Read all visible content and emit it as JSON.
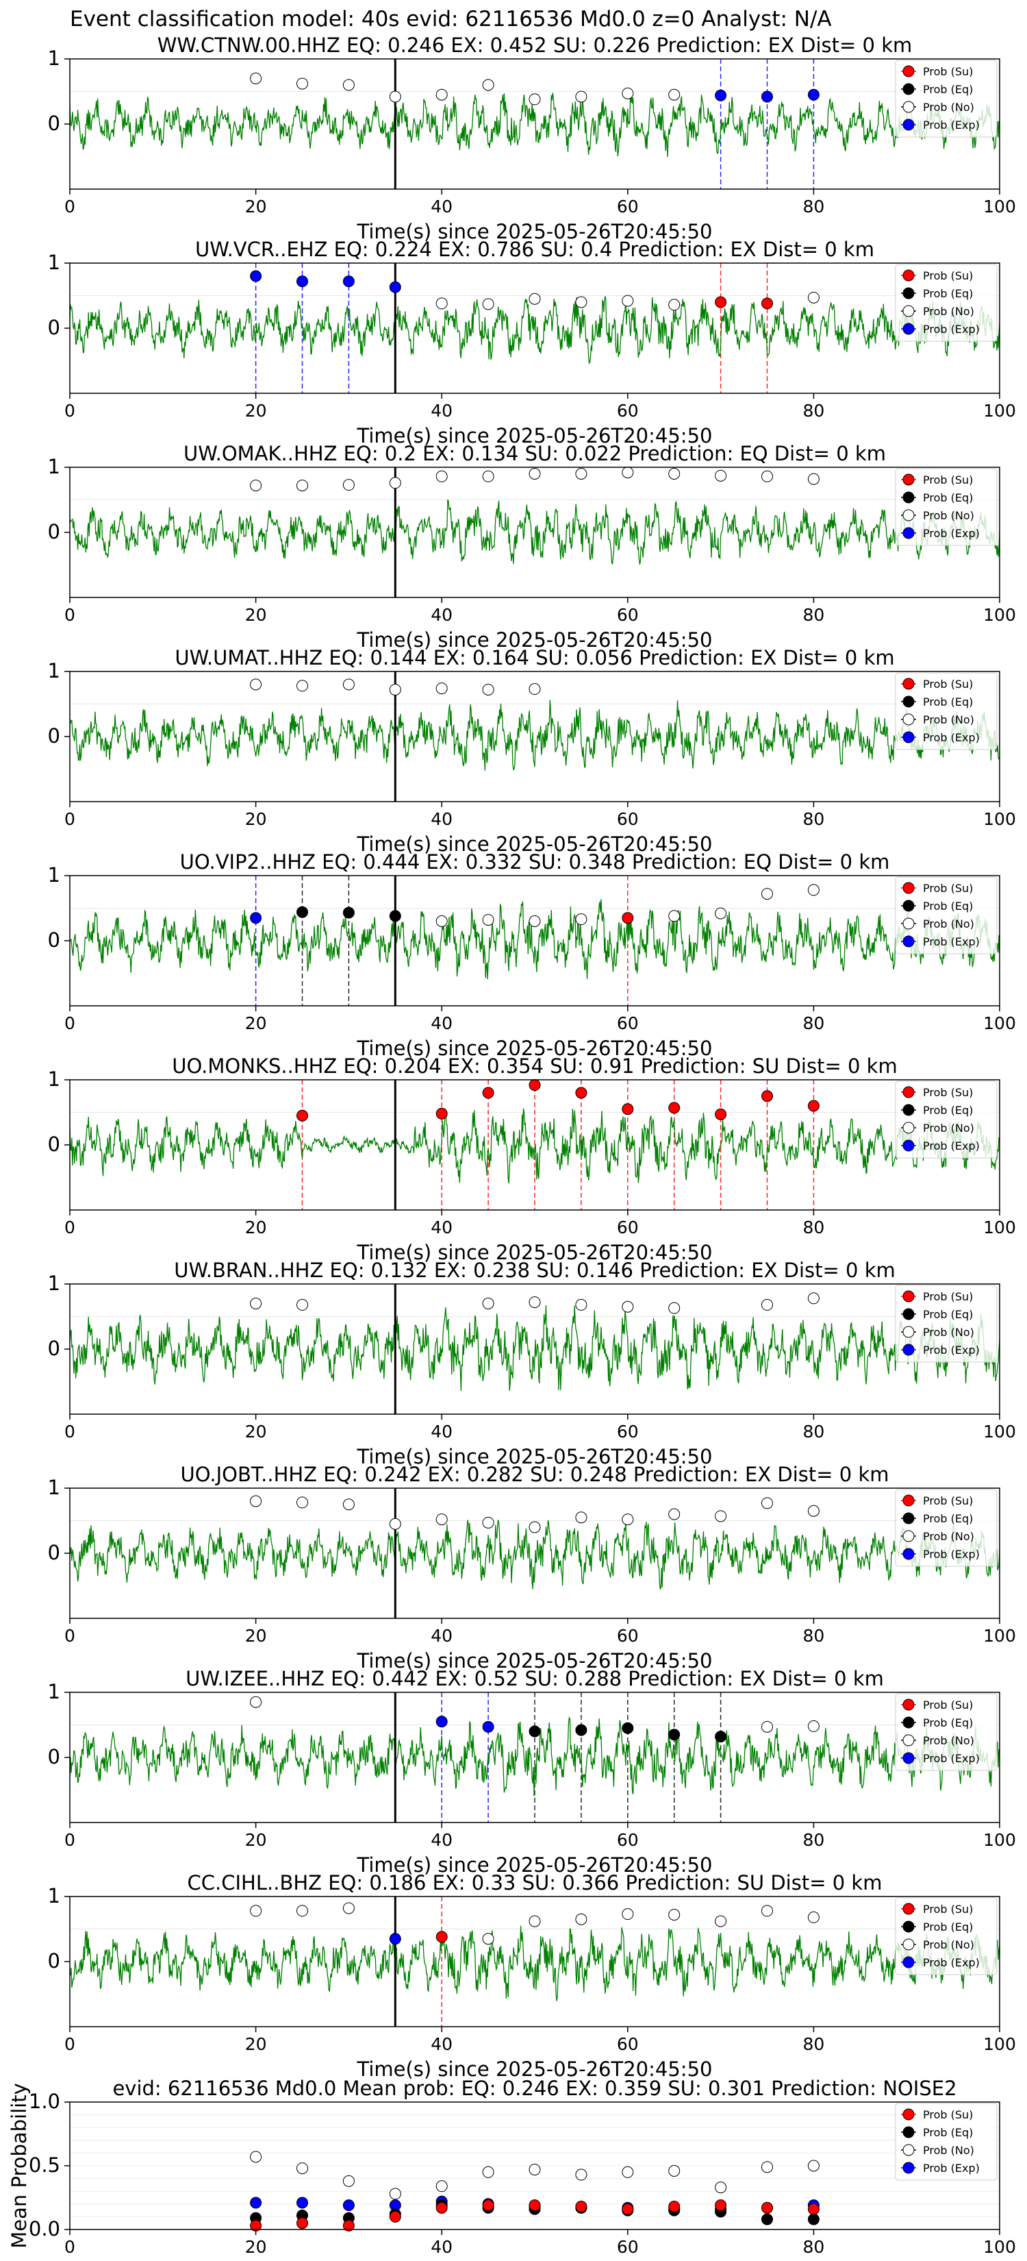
{
  "header": {
    "title": "Event classification model: 40s evid: 62116536 Md0.0 z=0 Analyst: N/A"
  },
  "legend_labels": [
    "Prob (Su)",
    "Prob (Eq)",
    "Prob (No)",
    "Prob (Exp)"
  ],
  "colors": {
    "waveform": "#008000",
    "su": "#ff0000",
    "eq": "#000000",
    "no": "#ffffff",
    "exp": "#0000ff",
    "pick_line": "#000000"
  },
  "chart_data": [
    {
      "type": "line",
      "title": "WW.CTNW.00.HHZ   EQ: 0.246   EX: 0.452   SU: 0.226   Prediction: EX    Dist= 0 km",
      "xlabel": "Time(s) since 2025-05-26T20:45:50",
      "xlim": [
        0,
        100
      ],
      "ylim": [
        -1,
        1
      ],
      "xticks": [
        0,
        20,
        40,
        60,
        80,
        100
      ],
      "yticks": [
        0,
        1
      ],
      "pick_time": 35,
      "amp": 0.3,
      "markers": [
        {
          "t": 20,
          "y": 0.7,
          "cls": "no"
        },
        {
          "t": 25,
          "y": 0.62,
          "cls": "no"
        },
        {
          "t": 30,
          "y": 0.6,
          "cls": "no"
        },
        {
          "t": 35,
          "y": 0.42,
          "cls": "no"
        },
        {
          "t": 40,
          "y": 0.45,
          "cls": "no"
        },
        {
          "t": 45,
          "y": 0.6,
          "cls": "no"
        },
        {
          "t": 50,
          "y": 0.38,
          "cls": "no"
        },
        {
          "t": 55,
          "y": 0.42,
          "cls": "no"
        },
        {
          "t": 60,
          "y": 0.47,
          "cls": "no"
        },
        {
          "t": 65,
          "y": 0.45,
          "cls": "no"
        },
        {
          "t": 70,
          "y": 0.44,
          "cls": "exp"
        },
        {
          "t": 75,
          "y": 0.42,
          "cls": "exp"
        },
        {
          "t": 80,
          "y": 0.45,
          "cls": "exp"
        }
      ]
    },
    {
      "type": "line",
      "title": "UW.VCR..EHZ   EQ: 0.224   EX: 0.786   SU: 0.4   Prediction: EX    Dist= 0 km",
      "xlabel": "Time(s) since 2025-05-26T20:45:50",
      "xlim": [
        0,
        100
      ],
      "ylim": [
        -1,
        1
      ],
      "xticks": [
        0,
        20,
        40,
        60,
        80,
        100
      ],
      "yticks": [
        0,
        1
      ],
      "pick_time": 35,
      "amp": 0.32,
      "markers": [
        {
          "t": 20,
          "y": 0.8,
          "cls": "exp"
        },
        {
          "t": 25,
          "y": 0.72,
          "cls": "exp"
        },
        {
          "t": 30,
          "y": 0.72,
          "cls": "exp"
        },
        {
          "t": 35,
          "y": 0.63,
          "cls": "exp"
        },
        {
          "t": 40,
          "y": 0.38,
          "cls": "no"
        },
        {
          "t": 45,
          "y": 0.37,
          "cls": "no"
        },
        {
          "t": 50,
          "y": 0.45,
          "cls": "no"
        },
        {
          "t": 55,
          "y": 0.4,
          "cls": "no"
        },
        {
          "t": 60,
          "y": 0.42,
          "cls": "no"
        },
        {
          "t": 65,
          "y": 0.36,
          "cls": "no"
        },
        {
          "t": 70,
          "y": 0.4,
          "cls": "su"
        },
        {
          "t": 75,
          "y": 0.38,
          "cls": "su"
        },
        {
          "t": 80,
          "y": 0.47,
          "cls": "no"
        }
      ]
    },
    {
      "type": "line",
      "title": "UW.OMAK..HHZ   EQ: 0.2  EX: 0.134  SU: 0.022   Prediction: EQ    Dist= 0 km",
      "xlabel": "Time(s) since 2025-05-26T20:45:50",
      "xlim": [
        0,
        100
      ],
      "ylim": [
        -1,
        1
      ],
      "xticks": [
        0,
        20,
        40,
        60,
        80,
        100
      ],
      "yticks": [
        0,
        1
      ],
      "pick_time": 35,
      "amp": 0.3,
      "markers": [
        {
          "t": 20,
          "y": 0.72,
          "cls": "no"
        },
        {
          "t": 25,
          "y": 0.72,
          "cls": "no"
        },
        {
          "t": 30,
          "y": 0.73,
          "cls": "no"
        },
        {
          "t": 35,
          "y": 0.76,
          "cls": "no"
        },
        {
          "t": 40,
          "y": 0.86,
          "cls": "no"
        },
        {
          "t": 45,
          "y": 0.86,
          "cls": "no"
        },
        {
          "t": 50,
          "y": 0.9,
          "cls": "no"
        },
        {
          "t": 55,
          "y": 0.9,
          "cls": "no"
        },
        {
          "t": 60,
          "y": 0.92,
          "cls": "no"
        },
        {
          "t": 65,
          "y": 0.9,
          "cls": "no"
        },
        {
          "t": 70,
          "y": 0.87,
          "cls": "no"
        },
        {
          "t": 75,
          "y": 0.86,
          "cls": "no"
        },
        {
          "t": 80,
          "y": 0.82,
          "cls": "no"
        }
      ]
    },
    {
      "type": "line",
      "title": "UW.UMAT..HHZ   EQ: 0.144  EX: 0.164  SU: 0.056   Prediction: EX    Dist= 0 km",
      "xlabel": "Time(s) since 2025-05-26T20:45:50",
      "xlim": [
        0,
        100
      ],
      "ylim": [
        -1,
        1
      ],
      "xticks": [
        0,
        20,
        40,
        60,
        80,
        100
      ],
      "yticks": [
        0,
        1
      ],
      "pick_time": 35,
      "amp": 0.32,
      "markers": [
        {
          "t": 20,
          "y": 0.8,
          "cls": "no"
        },
        {
          "t": 25,
          "y": 0.78,
          "cls": "no"
        },
        {
          "t": 30,
          "y": 0.8,
          "cls": "no"
        },
        {
          "t": 35,
          "y": 0.72,
          "cls": "no"
        },
        {
          "t": 40,
          "y": 0.74,
          "cls": "no"
        },
        {
          "t": 45,
          "y": 0.72,
          "cls": "no"
        },
        {
          "t": 50,
          "y": 0.73,
          "cls": "no"
        }
      ]
    },
    {
      "type": "line",
      "title": "UO.VIP2..HHZ   EQ: 0.444  EX: 0.332  SU: 0.348   Prediction: EQ    Dist= 0 km",
      "xlabel": "Time(s) since 2025-05-26T20:45:50",
      "xlim": [
        0,
        100
      ],
      "ylim": [
        -1,
        1
      ],
      "xticks": [
        0,
        20,
        40,
        60,
        80,
        100
      ],
      "yticks": [
        0,
        1
      ],
      "pick_time": 35,
      "amp": 0.36,
      "markers": [
        {
          "t": 20,
          "y": 0.35,
          "cls": "exp"
        },
        {
          "t": 25,
          "y": 0.44,
          "cls": "eq"
        },
        {
          "t": 30,
          "y": 0.43,
          "cls": "eq"
        },
        {
          "t": 35,
          "y": 0.38,
          "cls": "eq"
        },
        {
          "t": 40,
          "y": 0.3,
          "cls": "no"
        },
        {
          "t": 45,
          "y": 0.32,
          "cls": "no"
        },
        {
          "t": 50,
          "y": 0.3,
          "cls": "no"
        },
        {
          "t": 55,
          "y": 0.33,
          "cls": "no"
        },
        {
          "t": 60,
          "y": 0.35,
          "cls": "su"
        },
        {
          "t": 65,
          "y": 0.38,
          "cls": "no"
        },
        {
          "t": 70,
          "y": 0.42,
          "cls": "no"
        },
        {
          "t": 75,
          "y": 0.72,
          "cls": "no"
        },
        {
          "t": 80,
          "y": 0.78,
          "cls": "no"
        }
      ]
    },
    {
      "type": "line",
      "title": "UO.MONKS..HHZ   EQ: 0.204  EX: 0.354  SU: 0.91   Prediction: SU    Dist= 0 km",
      "xlabel": "Time(s) since 2025-05-26T20:45:50",
      "xlim": [
        0,
        100
      ],
      "ylim": [
        -1,
        1
      ],
      "xticks": [
        0,
        20,
        40,
        60,
        80,
        100
      ],
      "yticks": [
        0,
        1
      ],
      "pick_time": 35,
      "amp": 0.34,
      "markers": [
        {
          "t": 25,
          "y": 0.45,
          "cls": "su"
        },
        {
          "t": 40,
          "y": 0.48,
          "cls": "su"
        },
        {
          "t": 45,
          "y": 0.8,
          "cls": "su"
        },
        {
          "t": 50,
          "y": 0.92,
          "cls": "su"
        },
        {
          "t": 55,
          "y": 0.8,
          "cls": "su"
        },
        {
          "t": 60,
          "y": 0.55,
          "cls": "su"
        },
        {
          "t": 65,
          "y": 0.57,
          "cls": "su"
        },
        {
          "t": 70,
          "y": 0.47,
          "cls": "su"
        },
        {
          "t": 75,
          "y": 0.75,
          "cls": "su"
        },
        {
          "t": 80,
          "y": 0.6,
          "cls": "su"
        }
      ]
    },
    {
      "type": "line",
      "title": "UW.BRAN..HHZ   EQ: 0.132  EX: 0.238  SU: 0.146   Prediction: EX    Dist= 0 km",
      "xlabel": "Time(s) since 2025-05-26T20:45:50",
      "xlim": [
        0,
        100
      ],
      "ylim": [
        -1,
        1
      ],
      "xticks": [
        0,
        20,
        40,
        60,
        80,
        100
      ],
      "yticks": [
        0,
        1
      ],
      "pick_time": 35,
      "amp": 0.4,
      "markers": [
        {
          "t": 20,
          "y": 0.7,
          "cls": "no"
        },
        {
          "t": 25,
          "y": 0.68,
          "cls": "no"
        },
        {
          "t": 45,
          "y": 0.7,
          "cls": "no"
        },
        {
          "t": 50,
          "y": 0.72,
          "cls": "no"
        },
        {
          "t": 55,
          "y": 0.68,
          "cls": "no"
        },
        {
          "t": 60,
          "y": 0.65,
          "cls": "no"
        },
        {
          "t": 65,
          "y": 0.63,
          "cls": "no"
        },
        {
          "t": 75,
          "y": 0.68,
          "cls": "no"
        },
        {
          "t": 80,
          "y": 0.78,
          "cls": "no"
        }
      ]
    },
    {
      "type": "line",
      "title": "UO.JOBT..HHZ   EQ: 0.242  EX: 0.282  SU: 0.248   Prediction: EX    Dist= 0 km",
      "xlabel": "Time(s) since 2025-05-26T20:45:50",
      "xlim": [
        0,
        100
      ],
      "ylim": [
        -1,
        1
      ],
      "xticks": [
        0,
        20,
        40,
        60,
        80,
        100
      ],
      "yticks": [
        0,
        1
      ],
      "pick_time": 35,
      "amp": 0.32,
      "markers": [
        {
          "t": 20,
          "y": 0.8,
          "cls": "no"
        },
        {
          "t": 25,
          "y": 0.78,
          "cls": "no"
        },
        {
          "t": 30,
          "y": 0.75,
          "cls": "no"
        },
        {
          "t": 35,
          "y": 0.45,
          "cls": "no"
        },
        {
          "t": 40,
          "y": 0.52,
          "cls": "no"
        },
        {
          "t": 45,
          "y": 0.47,
          "cls": "no"
        },
        {
          "t": 50,
          "y": 0.4,
          "cls": "no"
        },
        {
          "t": 55,
          "y": 0.55,
          "cls": "no"
        },
        {
          "t": 60,
          "y": 0.52,
          "cls": "no"
        },
        {
          "t": 65,
          "y": 0.6,
          "cls": "no"
        },
        {
          "t": 70,
          "y": 0.57,
          "cls": "no"
        },
        {
          "t": 75,
          "y": 0.77,
          "cls": "no"
        },
        {
          "t": 80,
          "y": 0.65,
          "cls": "no"
        }
      ]
    },
    {
      "type": "line",
      "title": "UW.IZEE..HHZ   EQ: 0.442  EX: 0.52  SU: 0.288   Prediction: EX    Dist= 0 km",
      "xlabel": "Time(s) since 2025-05-26T20:45:50",
      "xlim": [
        0,
        100
      ],
      "ylim": [
        -1,
        1
      ],
      "xticks": [
        0,
        20,
        40,
        60,
        80,
        100
      ],
      "yticks": [
        0,
        1
      ],
      "pick_time": 35,
      "amp": 0.36,
      "markers": [
        {
          "t": 20,
          "y": 0.85,
          "cls": "no"
        },
        {
          "t": 40,
          "y": 0.55,
          "cls": "exp"
        },
        {
          "t": 45,
          "y": 0.47,
          "cls": "exp"
        },
        {
          "t": 50,
          "y": 0.4,
          "cls": "eq"
        },
        {
          "t": 55,
          "y": 0.42,
          "cls": "eq"
        },
        {
          "t": 60,
          "y": 0.45,
          "cls": "eq"
        },
        {
          "t": 65,
          "y": 0.35,
          "cls": "eq"
        },
        {
          "t": 70,
          "y": 0.32,
          "cls": "eq"
        },
        {
          "t": 75,
          "y": 0.47,
          "cls": "no"
        },
        {
          "t": 80,
          "y": 0.48,
          "cls": "no"
        }
      ]
    },
    {
      "type": "line",
      "title": "CC.CIHL..BHZ   EQ: 0.186  EX: 0.33  SU: 0.366   Prediction: SU    Dist= 0 km",
      "xlabel": "Time(s) since 2025-05-26T20:45:50",
      "xlim": [
        0,
        100
      ],
      "ylim": [
        -1,
        1
      ],
      "xticks": [
        0,
        20,
        40,
        60,
        80,
        100
      ],
      "yticks": [
        0,
        1
      ],
      "pick_time": 35,
      "amp": 0.34,
      "markers": [
        {
          "t": 20,
          "y": 0.78,
          "cls": "no"
        },
        {
          "t": 25,
          "y": 0.78,
          "cls": "no"
        },
        {
          "t": 30,
          "y": 0.82,
          "cls": "no"
        },
        {
          "t": 35,
          "y": 0.35,
          "cls": "exp"
        },
        {
          "t": 40,
          "y": 0.38,
          "cls": "su"
        },
        {
          "t": 45,
          "y": 0.35,
          "cls": "no"
        },
        {
          "t": 50,
          "y": 0.62,
          "cls": "no"
        },
        {
          "t": 55,
          "y": 0.65,
          "cls": "no"
        },
        {
          "t": 60,
          "y": 0.73,
          "cls": "no"
        },
        {
          "t": 65,
          "y": 0.72,
          "cls": "no"
        },
        {
          "t": 70,
          "y": 0.62,
          "cls": "no"
        },
        {
          "t": 75,
          "y": 0.78,
          "cls": "no"
        },
        {
          "t": 80,
          "y": 0.68,
          "cls": "no"
        }
      ]
    },
    {
      "type": "scatter",
      "title": "evid: 62116536  Md0.0   Mean prob:   EQ: 0.246  EX: 0.359  SU: 0.301   Prediction: NOISE2",
      "ylabel": "Mean Probability",
      "xlim": [
        0,
        100
      ],
      "ylim": [
        0,
        1
      ],
      "xticks": [
        0,
        20,
        40,
        60,
        80,
        100
      ],
      "yticks": [
        0.0,
        0.5,
        1.0
      ],
      "ytick_labels": [
        "0.0",
        "0.5",
        "1.0"
      ],
      "series": [
        {
          "cls": "no",
          "name": "Prob (No)",
          "t": [
            20,
            25,
            30,
            35,
            40,
            45,
            50,
            55,
            60,
            65,
            70,
            75,
            80
          ],
          "y": [
            0.57,
            0.48,
            0.38,
            0.28,
            0.34,
            0.45,
            0.47,
            0.43,
            0.45,
            0.46,
            0.33,
            0.49,
            0.5
          ]
        },
        {
          "cls": "exp",
          "name": "Prob (Exp)",
          "t": [
            20,
            25,
            30,
            35,
            40,
            45,
            50,
            55,
            60,
            65,
            70,
            75,
            80
          ],
          "y": [
            0.21,
            0.21,
            0.19,
            0.19,
            0.22,
            0.2,
            0.18,
            0.17,
            0.17,
            0.16,
            0.16,
            0.17,
            0.19
          ]
        },
        {
          "cls": "eq",
          "name": "Prob (Eq)",
          "t": [
            20,
            25,
            30,
            35,
            40,
            45,
            50,
            55,
            60,
            65,
            70,
            75,
            80
          ],
          "y": [
            0.09,
            0.11,
            0.09,
            0.12,
            0.19,
            0.17,
            0.16,
            0.17,
            0.15,
            0.15,
            0.14,
            0.08,
            0.08
          ]
        },
        {
          "cls": "su",
          "name": "Prob (Su)",
          "t": [
            20,
            25,
            30,
            35,
            40,
            45,
            50,
            55,
            60,
            65,
            70,
            75,
            80
          ],
          "y": [
            0.03,
            0.05,
            0.03,
            0.1,
            0.17,
            0.19,
            0.19,
            0.18,
            0.16,
            0.18,
            0.19,
            0.17,
            0.16
          ]
        }
      ]
    }
  ]
}
